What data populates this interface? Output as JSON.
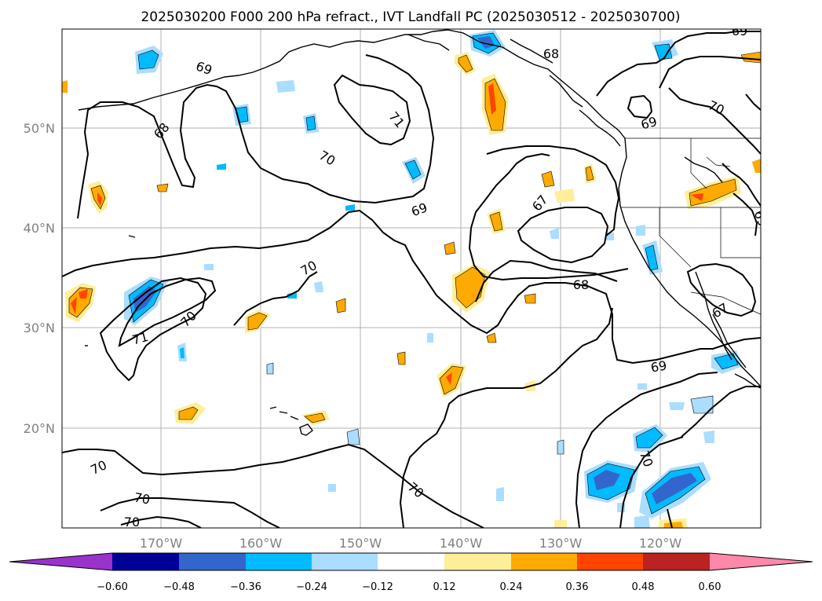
{
  "title": "2025030200 F000 200 hPa refract., IVT Landfall PC (2025030512 - 2025030700)",
  "lat_labels": [
    "50°N",
    "40°N",
    "30°N",
    "20°N"
  ],
  "lon_labels": [
    "170°W",
    "160°W",
    "150°W",
    "140°W",
    "130°W",
    "120°W"
  ],
  "contour_labels": [
    "69",
    "68",
    "71",
    "70",
    "69",
    "70",
    "67",
    "68",
    "70",
    "70",
    "71",
    "69",
    "70",
    "70",
    "70",
    "70",
    "69",
    "69",
    "68",
    "67",
    "69"
  ],
  "colorbar": {
    "labels": [
      "−0.60",
      "−0.48",
      "−0.36",
      "−0.24",
      "−0.12",
      "0.12",
      "0.24",
      "0.36",
      "0.48",
      "0.60"
    ],
    "colors": [
      "#9933cc",
      "#000099",
      "#3366cc",
      "#00bbff",
      "#aaddff",
      "#ffffff",
      "#ffee99",
      "#ffaa00",
      "#ff4400",
      "#bb2222",
      "#ff88aa"
    ]
  },
  "colors": {
    "pos_light": "#ffee99",
    "pos_mid": "#ffaa00",
    "pos_high": "#ff4400",
    "pos_max": "#bb2222",
    "neg_light": "#aaddff",
    "neg_mid": "#00bbff",
    "neg_high": "#3366cc",
    "neg_max": "#5555cc"
  }
}
